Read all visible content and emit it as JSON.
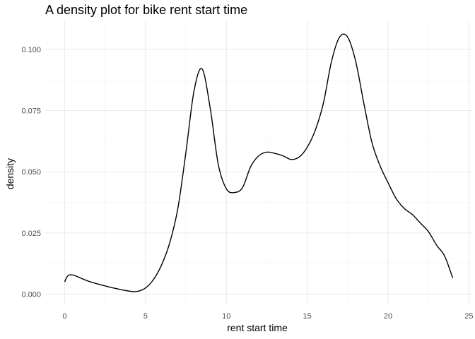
{
  "chart_data": {
    "type": "line",
    "title": "A density plot for bike rent start time",
    "xlabel": "rent start time",
    "ylabel": "density",
    "xlim": [
      -1.2,
      25.2
    ],
    "ylim": [
      -0.0045,
      0.1115
    ],
    "x_ticks": [
      0,
      5,
      10,
      15,
      20,
      25
    ],
    "x_tick_labels": [
      "0",
      "5",
      "10",
      "15",
      "20",
      "25"
    ],
    "y_ticks": [
      0.0,
      0.025,
      0.05,
      0.075,
      0.1
    ],
    "y_tick_labels": [
      "0.000",
      "0.025",
      "0.050",
      "0.075",
      "0.100"
    ],
    "grid": true,
    "series": [
      {
        "color": "#000000",
        "x": [
          0,
          0.2,
          0.5,
          1,
          1.5,
          2,
          3,
          4,
          4.5,
          5,
          5.5,
          6,
          6.5,
          7,
          7.5,
          8,
          8.5,
          9,
          9.5,
          10,
          10.5,
          11,
          11.5,
          12,
          12.5,
          13,
          13.5,
          14,
          14.5,
          15,
          15.5,
          16,
          16.5,
          17,
          17.5,
          18,
          18.5,
          19,
          19.5,
          20,
          20.5,
          21,
          21.5,
          22,
          22.5,
          23,
          23.5,
          24
        ],
        "y": [
          0.005,
          0.0075,
          0.0078,
          0.0065,
          0.0052,
          0.0042,
          0.0025,
          0.0012,
          0.0011,
          0.0025,
          0.006,
          0.012,
          0.021,
          0.035,
          0.058,
          0.083,
          0.092,
          0.076,
          0.053,
          0.043,
          0.0415,
          0.0435,
          0.052,
          0.0565,
          0.058,
          0.0575,
          0.0565,
          0.055,
          0.056,
          0.06,
          0.067,
          0.078,
          0.095,
          0.105,
          0.105,
          0.095,
          0.078,
          0.062,
          0.0525,
          0.0455,
          0.039,
          0.035,
          0.0325,
          0.029,
          0.0255,
          0.02,
          0.0155,
          0.0065
        ]
      }
    ]
  }
}
